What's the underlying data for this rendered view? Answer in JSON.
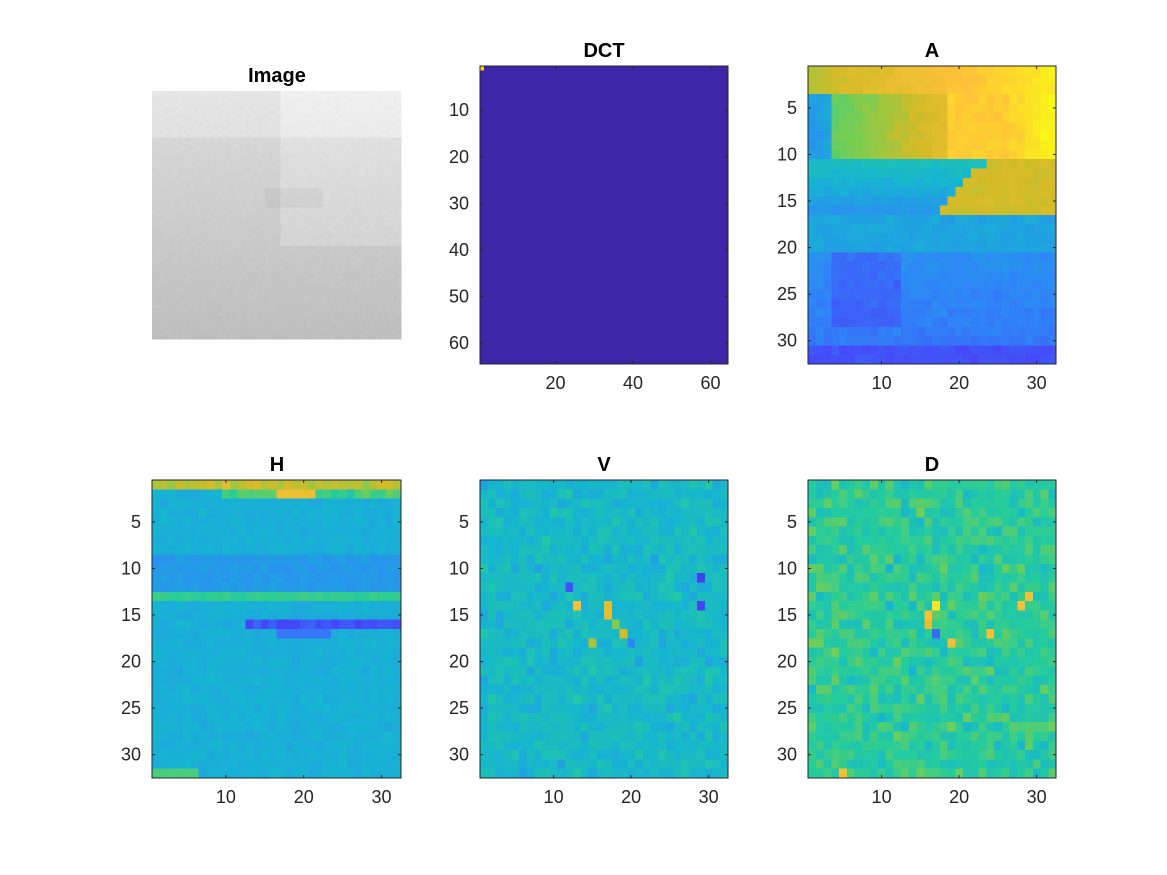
{
  "figure": {
    "background": "#ffffff",
    "colormap": "parula",
    "colormap_stops": [
      "#3e26a8",
      "#4743f8",
      "#2e87f7",
      "#16b5d1",
      "#25cc9c",
      "#77ce52",
      "#d4bb27",
      "#fec13a",
      "#f9fb15"
    ]
  },
  "chart_data": [
    {
      "type": "heatmap",
      "title": "Image",
      "colormap": "gray",
      "axes_visible": false,
      "size": [
        64,
        64
      ],
      "description_values": "grayscale, mostly light gray (~0.8-0.9), brighter cloud region at top, darker toward bottom",
      "xticks": [],
      "yticks": []
    },
    {
      "type": "heatmap",
      "title": "DCT",
      "colormap": "parula",
      "size": [
        64,
        64
      ],
      "xlim": [
        0.5,
        64.5
      ],
      "ylim": [
        0.5,
        64.5
      ],
      "xticks": [
        20,
        40,
        60
      ],
      "yticks": [
        10,
        20,
        30,
        40,
        50,
        60
      ],
      "note_values": "uniform low value everywhere except a single high coefficient at (1,1)"
    },
    {
      "type": "heatmap",
      "title": "A",
      "colormap": "parula",
      "size": [
        32,
        32
      ],
      "xlim": [
        0.5,
        32.5
      ],
      "ylim": [
        0.5,
        32.5
      ],
      "xticks": [
        10,
        20,
        30
      ],
      "yticks": [
        5,
        10,
        15,
        20,
        25,
        30
      ]
    },
    {
      "type": "heatmap",
      "title": "H",
      "colormap": "parula",
      "size": [
        32,
        32
      ],
      "xlim": [
        0.5,
        32.5
      ],
      "ylim": [
        0.5,
        32.5
      ],
      "xticks": [
        10,
        20,
        30
      ],
      "yticks": [
        5,
        10,
        15,
        20,
        25,
        30
      ]
    },
    {
      "type": "heatmap",
      "title": "V",
      "colormap": "parula",
      "size": [
        32,
        32
      ],
      "xlim": [
        0.5,
        32.5
      ],
      "ylim": [
        0.5,
        32.5
      ],
      "xticks": [
        10,
        20,
        30
      ],
      "yticks": [
        5,
        10,
        15,
        20,
        25,
        30
      ]
    },
    {
      "type": "heatmap",
      "title": "D",
      "colormap": "parula",
      "size": [
        32,
        32
      ],
      "xlim": [
        0.5,
        32.5
      ],
      "ylim": [
        0.5,
        32.5
      ],
      "xticks": [
        10,
        20,
        30
      ],
      "yticks": [
        5,
        10,
        15,
        20,
        25,
        30
      ]
    }
  ]
}
